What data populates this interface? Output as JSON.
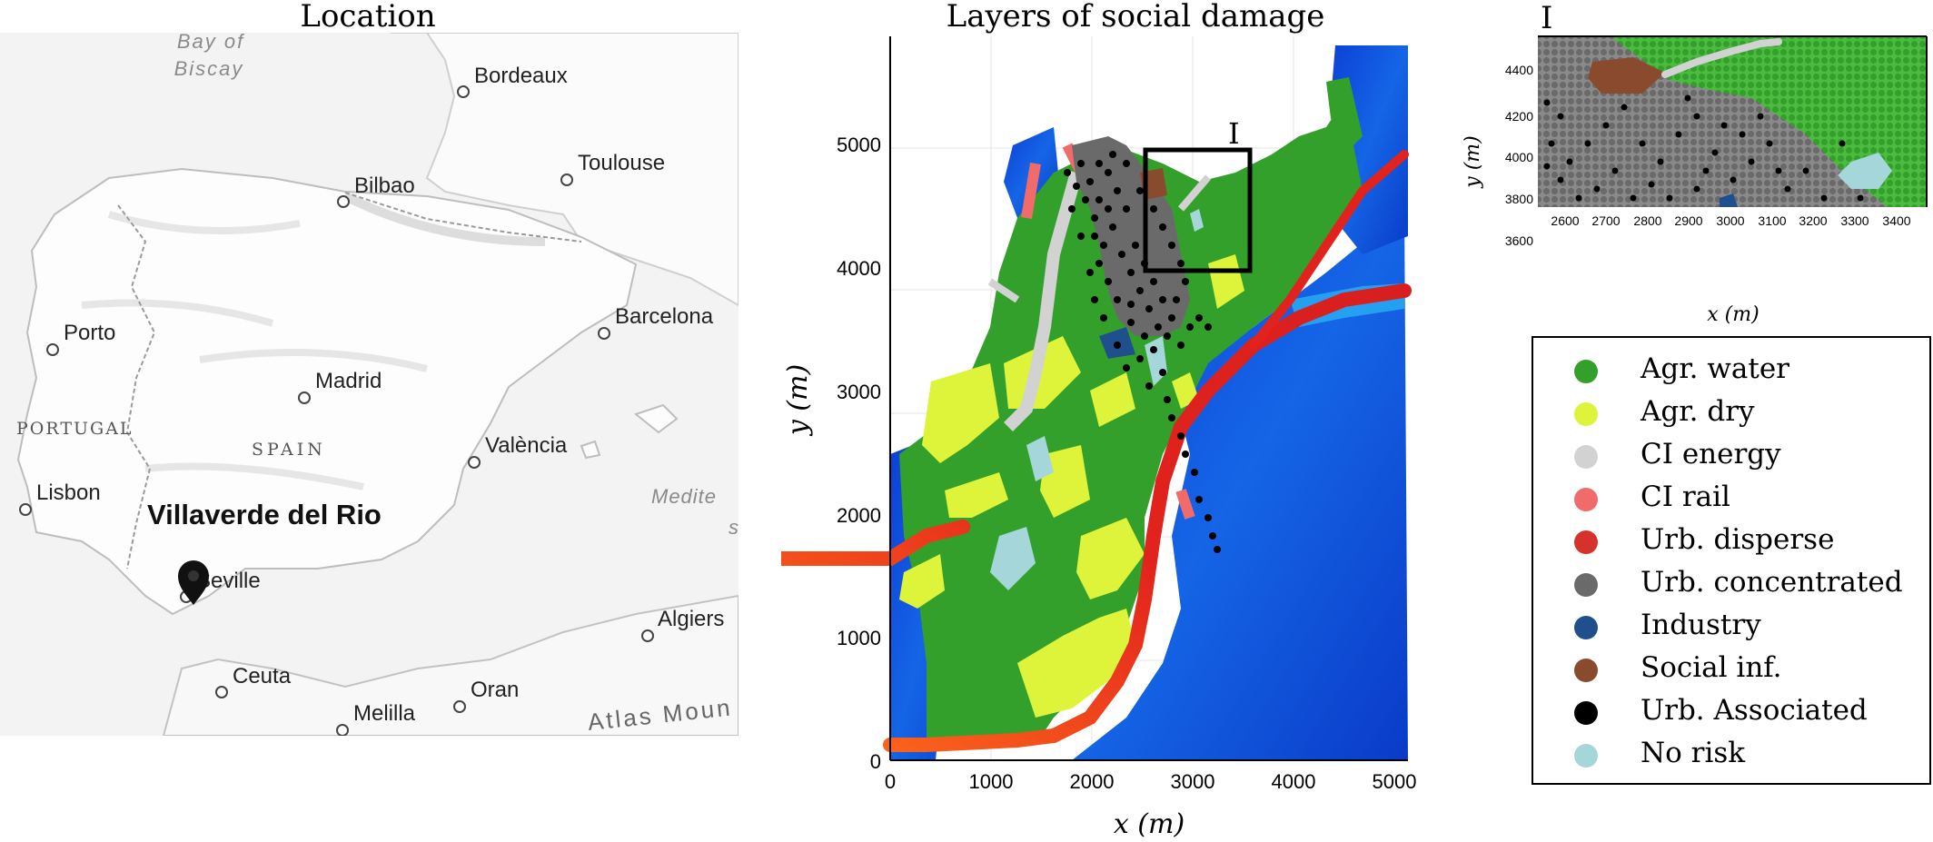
{
  "panel_titles": {
    "location": "Location",
    "social_damage": "Layers of social damage",
    "inset": "I"
  },
  "map": {
    "cities": [
      {
        "name": "Bordeaux"
      },
      {
        "name": "Toulouse"
      },
      {
        "name": "Bilbao"
      },
      {
        "name": "Barcelona"
      },
      {
        "name": "Porto"
      },
      {
        "name": "Madrid"
      },
      {
        "name": "València"
      },
      {
        "name": "Lisbon"
      },
      {
        "name": "Seville"
      },
      {
        "name": "Algiers"
      },
      {
        "name": "Ceuta"
      },
      {
        "name": "Oran"
      },
      {
        "name": "Melilla"
      }
    ],
    "water_labels": [
      "Bay of",
      "Biscay",
      "Medite",
      "s"
    ],
    "country_labels": [
      "PORTUGAL",
      "SPAIN"
    ],
    "region_labels": [
      "Atlas Moun"
    ],
    "highlight_location": "Villaverde del Rio"
  },
  "main_plot": {
    "x_axis_label": "x (m)",
    "y_axis_label": "y (m)",
    "x_ticks": [
      "0",
      "1000",
      "2000",
      "3000",
      "4000",
      "5000"
    ],
    "y_ticks": [
      "0",
      "1000",
      "2000",
      "3000",
      "4000",
      "5000"
    ],
    "box_label": "I"
  },
  "inset_plot": {
    "x_axis_label": "x (m)",
    "y_axis_label": "y (m)",
    "x_ticks": [
      "2600",
      "2700",
      "2800",
      "2900",
      "3000",
      "3100",
      "3200",
      "3300",
      "3400"
    ],
    "y_ticks": [
      "4400",
      "4200",
      "4000",
      "3800",
      "3600"
    ]
  },
  "legend": [
    {
      "label": "Agr. water",
      "color": "#34a02c"
    },
    {
      "label": "Agr. dry",
      "color": "#ddf43a"
    },
    {
      "label": "CI energy",
      "color": "#d2d2d2"
    },
    {
      "label": "CI rail",
      "color": "#f26b6b"
    },
    {
      "label": "Urb. disperse",
      "color": "#d7312c"
    },
    {
      "label": "Urb. concentrated",
      "color": "#6a6a6a"
    },
    {
      "label": "Industry",
      "color": "#1f4f8c"
    },
    {
      "label": "Social inf.",
      "color": "#8a4a2e"
    },
    {
      "label": "Urb. Associated",
      "color": "#000000"
    },
    {
      "label": "No risk",
      "color": "#a5d6da"
    }
  ]
}
